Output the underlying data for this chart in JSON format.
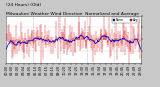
{
  "title_line1": "Milwaukee Weather Wind Direction",
  "title_line2": "Normalized and Average",
  "title_line3": "(24 Hours) (Old)",
  "bg_color": "#c8c8c8",
  "plot_bg_color": "#ffffff",
  "bar_color": "#dd0000",
  "line_color": "#0000cc",
  "legend_labels": [
    "Norm",
    "Avg"
  ],
  "legend_colors": [
    "#0000cc",
    "#dd0000"
  ],
  "ylim": [
    0,
    360
  ],
  "ytick_values": [
    90,
    180,
    270,
    360
  ],
  "ytick_labels": [
    "",
    "",
    "",
    ""
  ],
  "n_points": 288,
  "seed": 42,
  "mean_direction": 175,
  "noise_std": 75,
  "avg_window": 18,
  "spike_index": 155,
  "spike_value": 358,
  "spike2_index": 185,
  "spike2_value": 8,
  "title_fontsize": 3.2,
  "tick_fontsize": 2.5,
  "grid_color": "#aaaaaa",
  "n_vgrid": 4,
  "n_xticks": 24
}
